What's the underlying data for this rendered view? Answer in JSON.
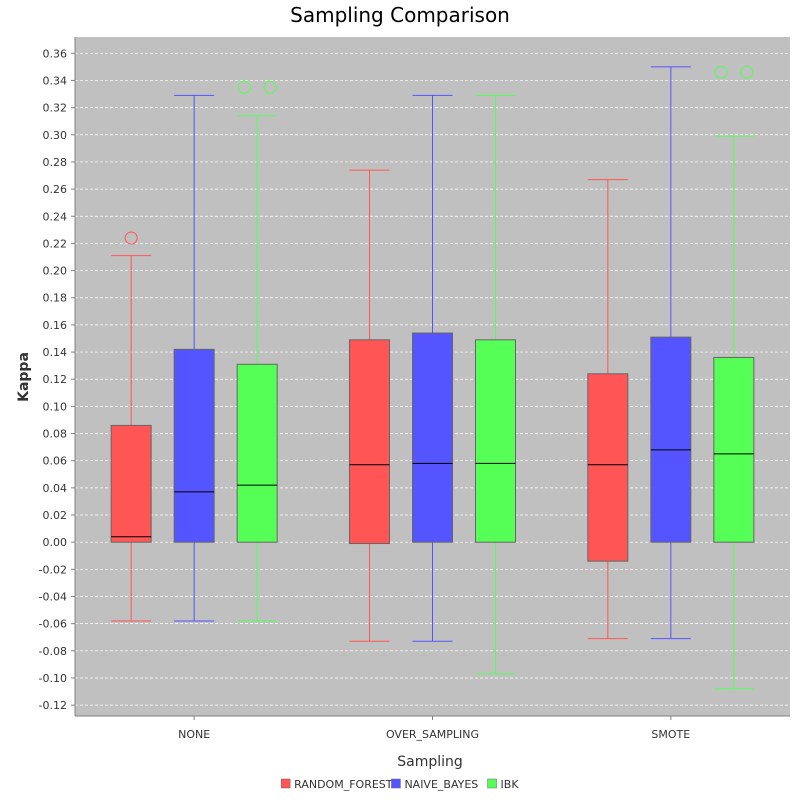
{
  "chart_data": {
    "type": "box",
    "title": "Sampling Comparison",
    "xlabel": "Sampling",
    "ylabel": "Kappa",
    "ylim": [
      -0.128,
      0.372
    ],
    "yticks": [
      -0.12,
      -0.1,
      -0.08,
      -0.06,
      -0.04,
      -0.02,
      0.0,
      0.02,
      0.04,
      0.06,
      0.08,
      0.1,
      0.12,
      0.14,
      0.16,
      0.18,
      0.2,
      0.22,
      0.24,
      0.26,
      0.28,
      0.3,
      0.32,
      0.34,
      0.36
    ],
    "ytick_labels": [
      "-0.12",
      "-0.10",
      "-0.08",
      "-0.06",
      "-0.04",
      "-0.02",
      "0.00",
      "0.02",
      "0.04",
      "0.06",
      "0.08",
      "0.10",
      "0.12",
      "0.14",
      "0.16",
      "0.18",
      "0.20",
      "0.22",
      "0.24",
      "0.26",
      "0.28",
      "0.30",
      "0.32",
      "0.34",
      "0.36"
    ],
    "grid": "horizontal",
    "legend_position": "bottom",
    "background_color": "#c0c0c0",
    "categories": [
      "NONE",
      "OVER_SAMPLING",
      "SMOTE"
    ],
    "series": [
      {
        "name": "RANDOM_FOREST",
        "color": "#ff5555",
        "boxes": [
          {
            "min": -0.058,
            "q1": 0.0,
            "median": 0.004,
            "q3": 0.086,
            "max": 0.211,
            "outliers": [
              0.224
            ]
          },
          {
            "min": -0.073,
            "q1": -0.001,
            "median": 0.057,
            "q3": 0.149,
            "max": 0.274,
            "outliers": []
          },
          {
            "min": -0.071,
            "q1": -0.014,
            "median": 0.057,
            "q3": 0.124,
            "max": 0.267,
            "outliers": []
          }
        ]
      },
      {
        "name": "NAIVE_BAYES",
        "color": "#5555ff",
        "boxes": [
          {
            "min": -0.058,
            "q1": 0.0,
            "median": 0.037,
            "q3": 0.142,
            "max": 0.329,
            "outliers": []
          },
          {
            "min": -0.073,
            "q1": 0.0,
            "median": 0.058,
            "q3": 0.154,
            "max": 0.329,
            "outliers": []
          },
          {
            "min": -0.071,
            "q1": 0.0,
            "median": 0.068,
            "q3": 0.151,
            "max": 0.35,
            "outliers": []
          }
        ]
      },
      {
        "name": "IBK",
        "color": "#55ff55",
        "boxes": [
          {
            "min": -0.058,
            "q1": 0.0,
            "median": 0.042,
            "q3": 0.131,
            "max": 0.314,
            "outliers": [
              0.335,
              0.335
            ]
          },
          {
            "min": -0.097,
            "q1": 0.0,
            "median": 0.058,
            "q3": 0.149,
            "max": 0.329,
            "outliers": []
          },
          {
            "min": -0.108,
            "q1": 0.0,
            "median": 0.065,
            "q3": 0.136,
            "max": 0.299,
            "outliers": [
              0.346,
              0.346
            ]
          }
        ]
      }
    ]
  }
}
